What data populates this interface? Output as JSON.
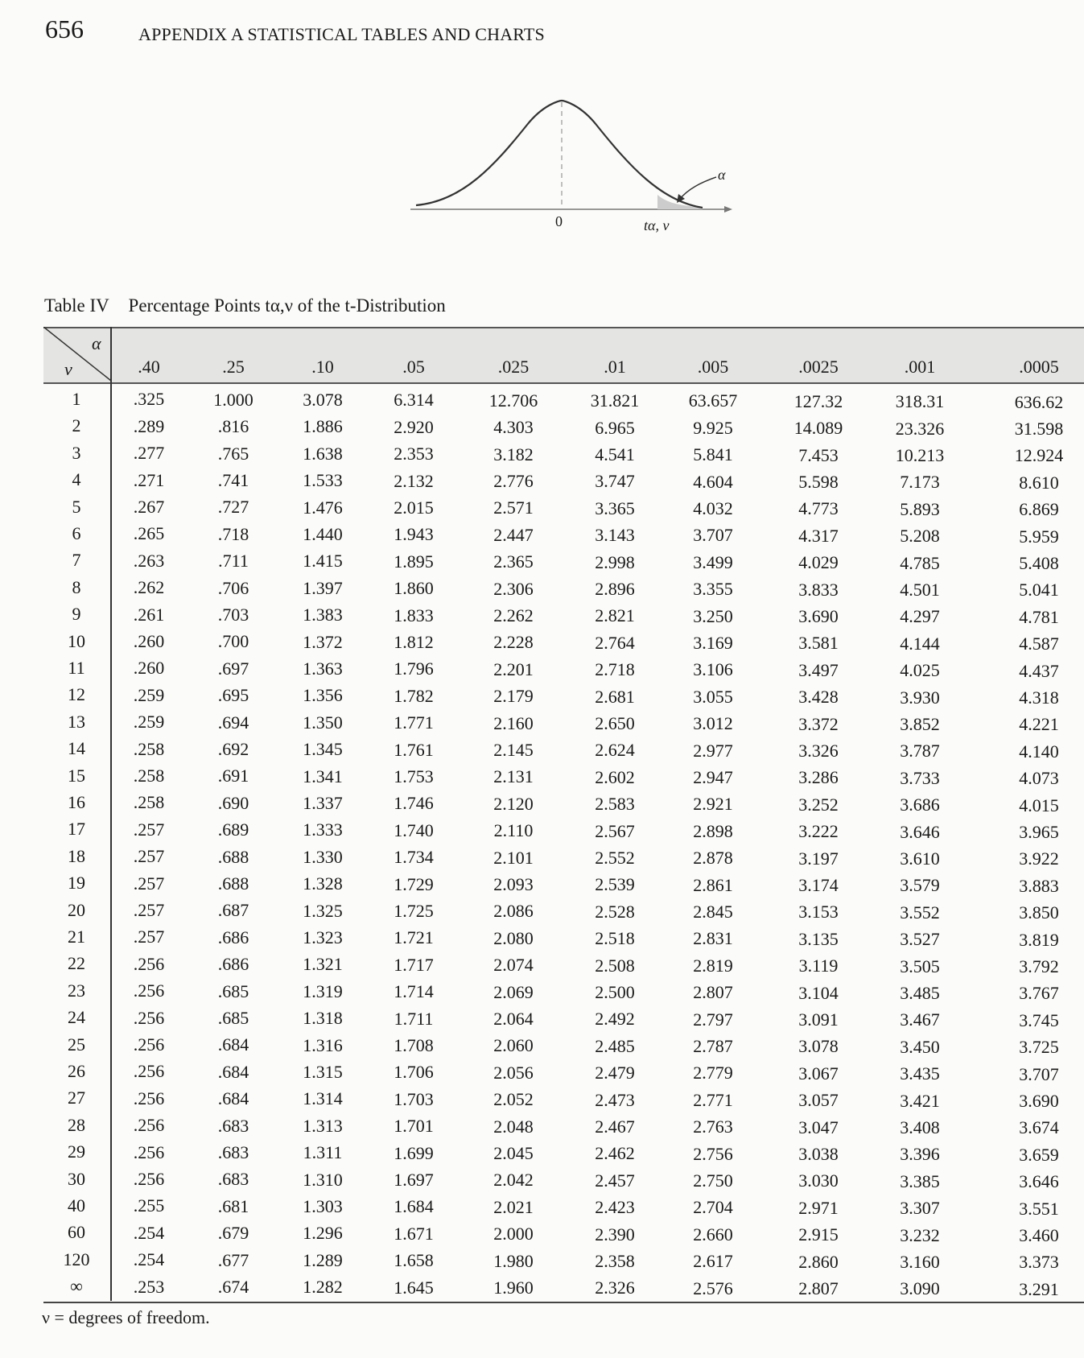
{
  "header": {
    "page_number": "656",
    "running_title": "APPENDIX A   STATISTICAL TABLES AND CHARTS"
  },
  "figure": {
    "zero_label": "0",
    "t_label": "tα, ν",
    "alpha_label": "α"
  },
  "table": {
    "label": "Table IV",
    "caption": "Percentage Points tα,ν of the t-Distribution",
    "corner_alpha": "α",
    "corner_nu": "ν",
    "alphas": [
      ".40",
      ".25",
      ".10",
      ".05",
      ".025",
      ".01",
      ".005",
      ".0025",
      ".001",
      ".0005"
    ],
    "rows": [
      [
        "1",
        ".325",
        "1.000",
        "3.078",
        "6.314",
        "12.706",
        "31.821",
        "63.657",
        "127.32",
        "318.31",
        "636.62"
      ],
      [
        "2",
        ".289",
        ".816",
        "1.886",
        "2.920",
        "4.303",
        "6.965",
        "9.925",
        "14.089",
        "23.326",
        "31.598"
      ],
      [
        "3",
        ".277",
        ".765",
        "1.638",
        "2.353",
        "3.182",
        "4.541",
        "5.841",
        "7.453",
        "10.213",
        "12.924"
      ],
      [
        "4",
        ".271",
        ".741",
        "1.533",
        "2.132",
        "2.776",
        "3.747",
        "4.604",
        "5.598",
        "7.173",
        "8.610"
      ],
      [
        "5",
        ".267",
        ".727",
        "1.476",
        "2.015",
        "2.571",
        "3.365",
        "4.032",
        "4.773",
        "5.893",
        "6.869"
      ],
      [
        "6",
        ".265",
        ".718",
        "1.440",
        "1.943",
        "2.447",
        "3.143",
        "3.707",
        "4.317",
        "5.208",
        "5.959"
      ],
      [
        "7",
        ".263",
        ".711",
        "1.415",
        "1.895",
        "2.365",
        "2.998",
        "3.499",
        "4.029",
        "4.785",
        "5.408"
      ],
      [
        "8",
        ".262",
        ".706",
        "1.397",
        "1.860",
        "2.306",
        "2.896",
        "3.355",
        "3.833",
        "4.501",
        "5.041"
      ],
      [
        "9",
        ".261",
        ".703",
        "1.383",
        "1.833",
        "2.262",
        "2.821",
        "3.250",
        "3.690",
        "4.297",
        "4.781"
      ],
      [
        "10",
        ".260",
        ".700",
        "1.372",
        "1.812",
        "2.228",
        "2.764",
        "3.169",
        "3.581",
        "4.144",
        "4.587"
      ],
      [
        "11",
        ".260",
        ".697",
        "1.363",
        "1.796",
        "2.201",
        "2.718",
        "3.106",
        "3.497",
        "4.025",
        "4.437"
      ],
      [
        "12",
        ".259",
        ".695",
        "1.356",
        "1.782",
        "2.179",
        "2.681",
        "3.055",
        "3.428",
        "3.930",
        "4.318"
      ],
      [
        "13",
        ".259",
        ".694",
        "1.350",
        "1.771",
        "2.160",
        "2.650",
        "3.012",
        "3.372",
        "3.852",
        "4.221"
      ],
      [
        "14",
        ".258",
        ".692",
        "1.345",
        "1.761",
        "2.145",
        "2.624",
        "2.977",
        "3.326",
        "3.787",
        "4.140"
      ],
      [
        "15",
        ".258",
        ".691",
        "1.341",
        "1.753",
        "2.131",
        "2.602",
        "2.947",
        "3.286",
        "3.733",
        "4.073"
      ],
      [
        "16",
        ".258",
        ".690",
        "1.337",
        "1.746",
        "2.120",
        "2.583",
        "2.921",
        "3.252",
        "3.686",
        "4.015"
      ],
      [
        "17",
        ".257",
        ".689",
        "1.333",
        "1.740",
        "2.110",
        "2.567",
        "2.898",
        "3.222",
        "3.646",
        "3.965"
      ],
      [
        "18",
        ".257",
        ".688",
        "1.330",
        "1.734",
        "2.101",
        "2.552",
        "2.878",
        "3.197",
        "3.610",
        "3.922"
      ],
      [
        "19",
        ".257",
        ".688",
        "1.328",
        "1.729",
        "2.093",
        "2.539",
        "2.861",
        "3.174",
        "3.579",
        "3.883"
      ],
      [
        "20",
        ".257",
        ".687",
        "1.325",
        "1.725",
        "2.086",
        "2.528",
        "2.845",
        "3.153",
        "3.552",
        "3.850"
      ],
      [
        "21",
        ".257",
        ".686",
        "1.323",
        "1.721",
        "2.080",
        "2.518",
        "2.831",
        "3.135",
        "3.527",
        "3.819"
      ],
      [
        "22",
        ".256",
        ".686",
        "1.321",
        "1.717",
        "2.074",
        "2.508",
        "2.819",
        "3.119",
        "3.505",
        "3.792"
      ],
      [
        "23",
        ".256",
        ".685",
        "1.319",
        "1.714",
        "2.069",
        "2.500",
        "2.807",
        "3.104",
        "3.485",
        "3.767"
      ],
      [
        "24",
        ".256",
        ".685",
        "1.318",
        "1.711",
        "2.064",
        "2.492",
        "2.797",
        "3.091",
        "3.467",
        "3.745"
      ],
      [
        "25",
        ".256",
        ".684",
        "1.316",
        "1.708",
        "2.060",
        "2.485",
        "2.787",
        "3.078",
        "3.450",
        "3.725"
      ],
      [
        "26",
        ".256",
        ".684",
        "1.315",
        "1.706",
        "2.056",
        "2.479",
        "2.779",
        "3.067",
        "3.435",
        "3.707"
      ],
      [
        "27",
        ".256",
        ".684",
        "1.314",
        "1.703",
        "2.052",
        "2.473",
        "2.771",
        "3.057",
        "3.421",
        "3.690"
      ],
      [
        "28",
        ".256",
        ".683",
        "1.313",
        "1.701",
        "2.048",
        "2.467",
        "2.763",
        "3.047",
        "3.408",
        "3.674"
      ],
      [
        "29",
        ".256",
        ".683",
        "1.311",
        "1.699",
        "2.045",
        "2.462",
        "2.756",
        "3.038",
        "3.396",
        "3.659"
      ],
      [
        "30",
        ".256",
        ".683",
        "1.310",
        "1.697",
        "2.042",
        "2.457",
        "2.750",
        "3.030",
        "3.385",
        "3.646"
      ],
      [
        "40",
        ".255",
        ".681",
        "1.303",
        "1.684",
        "2.021",
        "2.423",
        "2.704",
        "2.971",
        "3.307",
        "3.551"
      ],
      [
        "60",
        ".254",
        ".679",
        "1.296",
        "1.671",
        "2.000",
        "2.390",
        "2.660",
        "2.915",
        "3.232",
        "3.460"
      ],
      [
        "120",
        ".254",
        ".677",
        "1.289",
        "1.658",
        "1.980",
        "2.358",
        "2.617",
        "2.860",
        "3.160",
        "3.373"
      ],
      [
        "∞",
        ".253",
        ".674",
        "1.282",
        "1.645",
        "1.960",
        "2.326",
        "2.576",
        "2.807",
        "3.090",
        "3.291"
      ]
    ],
    "footnote": "ν = degrees of freedom."
  }
}
